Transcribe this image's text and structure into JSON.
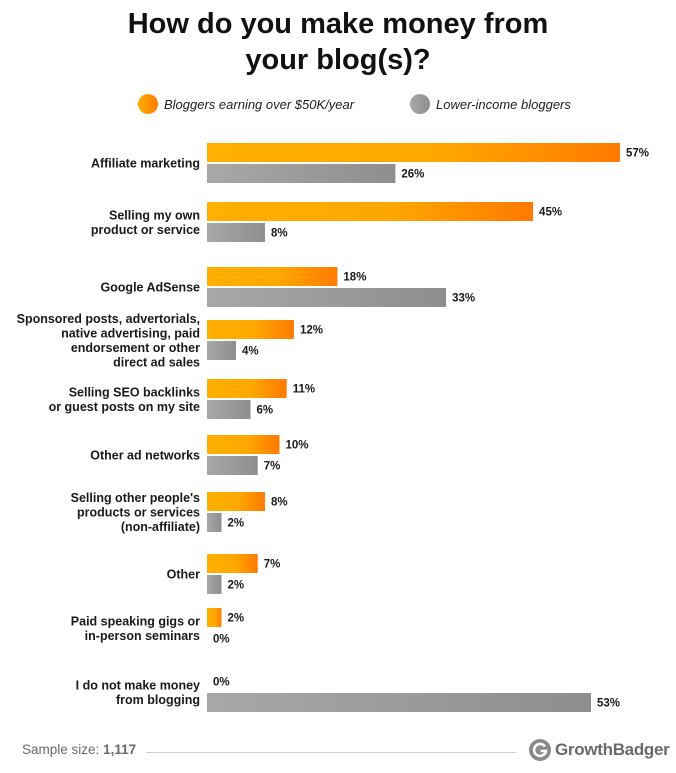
{
  "title_line1": "How do you make money from",
  "title_line2": "your blog(s)?",
  "footer": {
    "sample_label": "Sample size:",
    "sample_value": "1,117",
    "brand": "GrowthBadger",
    "brand_icon": "growthbadger-logo-icon"
  },
  "colors": {
    "orange_start": "#FFB000",
    "orange_end": "#FF7A00",
    "gray": "#8E8E8E",
    "gray_light": "#A8A8A8"
  },
  "chart_data": {
    "type": "bar",
    "orientation": "horizontal",
    "title": "How do you make money from your blog(s)?",
    "xlabel": "",
    "ylabel": "",
    "xlim": [
      0,
      57
    ],
    "grid": false,
    "legend_position": "top",
    "categories": [
      "Affiliate marketing",
      "Selling my own product or service",
      "Google AdSense",
      "Sponsored posts, advertorials, native advertising, paid endorsement or other direct ad sales",
      "Selling SEO backlinks or guest posts on my site",
      "Other ad networks",
      "Selling other people's products or services (non-affiliate)",
      "Other",
      "Paid speaking gigs or in-person seminars",
      "I do not make money from blogging"
    ],
    "category_lines": [
      [
        "Affiliate marketing"
      ],
      [
        "Selling my own",
        "product or service"
      ],
      [
        "Google AdSense"
      ],
      [
        "Sponsored posts, advertorials,",
        "native advertising, paid",
        "endorsement or other",
        "direct ad sales"
      ],
      [
        "Selling SEO backlinks",
        "or guest posts on my site"
      ],
      [
        "Other ad networks"
      ],
      [
        "Selling other people's",
        "products or services",
        "(non-affiliate)"
      ],
      [
        "Other"
      ],
      [
        "Paid speaking gigs or",
        "in-person seminars"
      ],
      [
        "I do not make money",
        "from blogging"
      ]
    ],
    "series": [
      {
        "name": "Bloggers earning over $50K/year",
        "values": [
          57,
          45,
          18,
          12,
          11,
          10,
          8,
          7,
          2,
          0
        ],
        "labels": [
          "57%",
          "45%",
          "18%",
          "12%",
          "11%",
          "10%",
          "8%",
          "7%",
          "2%",
          "0%"
        ]
      },
      {
        "name": "Lower-income bloggers",
        "values": [
          26,
          8,
          33,
          4,
          6,
          7,
          2,
          2,
          0,
          53
        ],
        "labels": [
          "26%",
          "8%",
          "33%",
          "4%",
          "6%",
          "7%",
          "2%",
          "2%",
          "0%",
          "53%"
        ]
      }
    ]
  }
}
